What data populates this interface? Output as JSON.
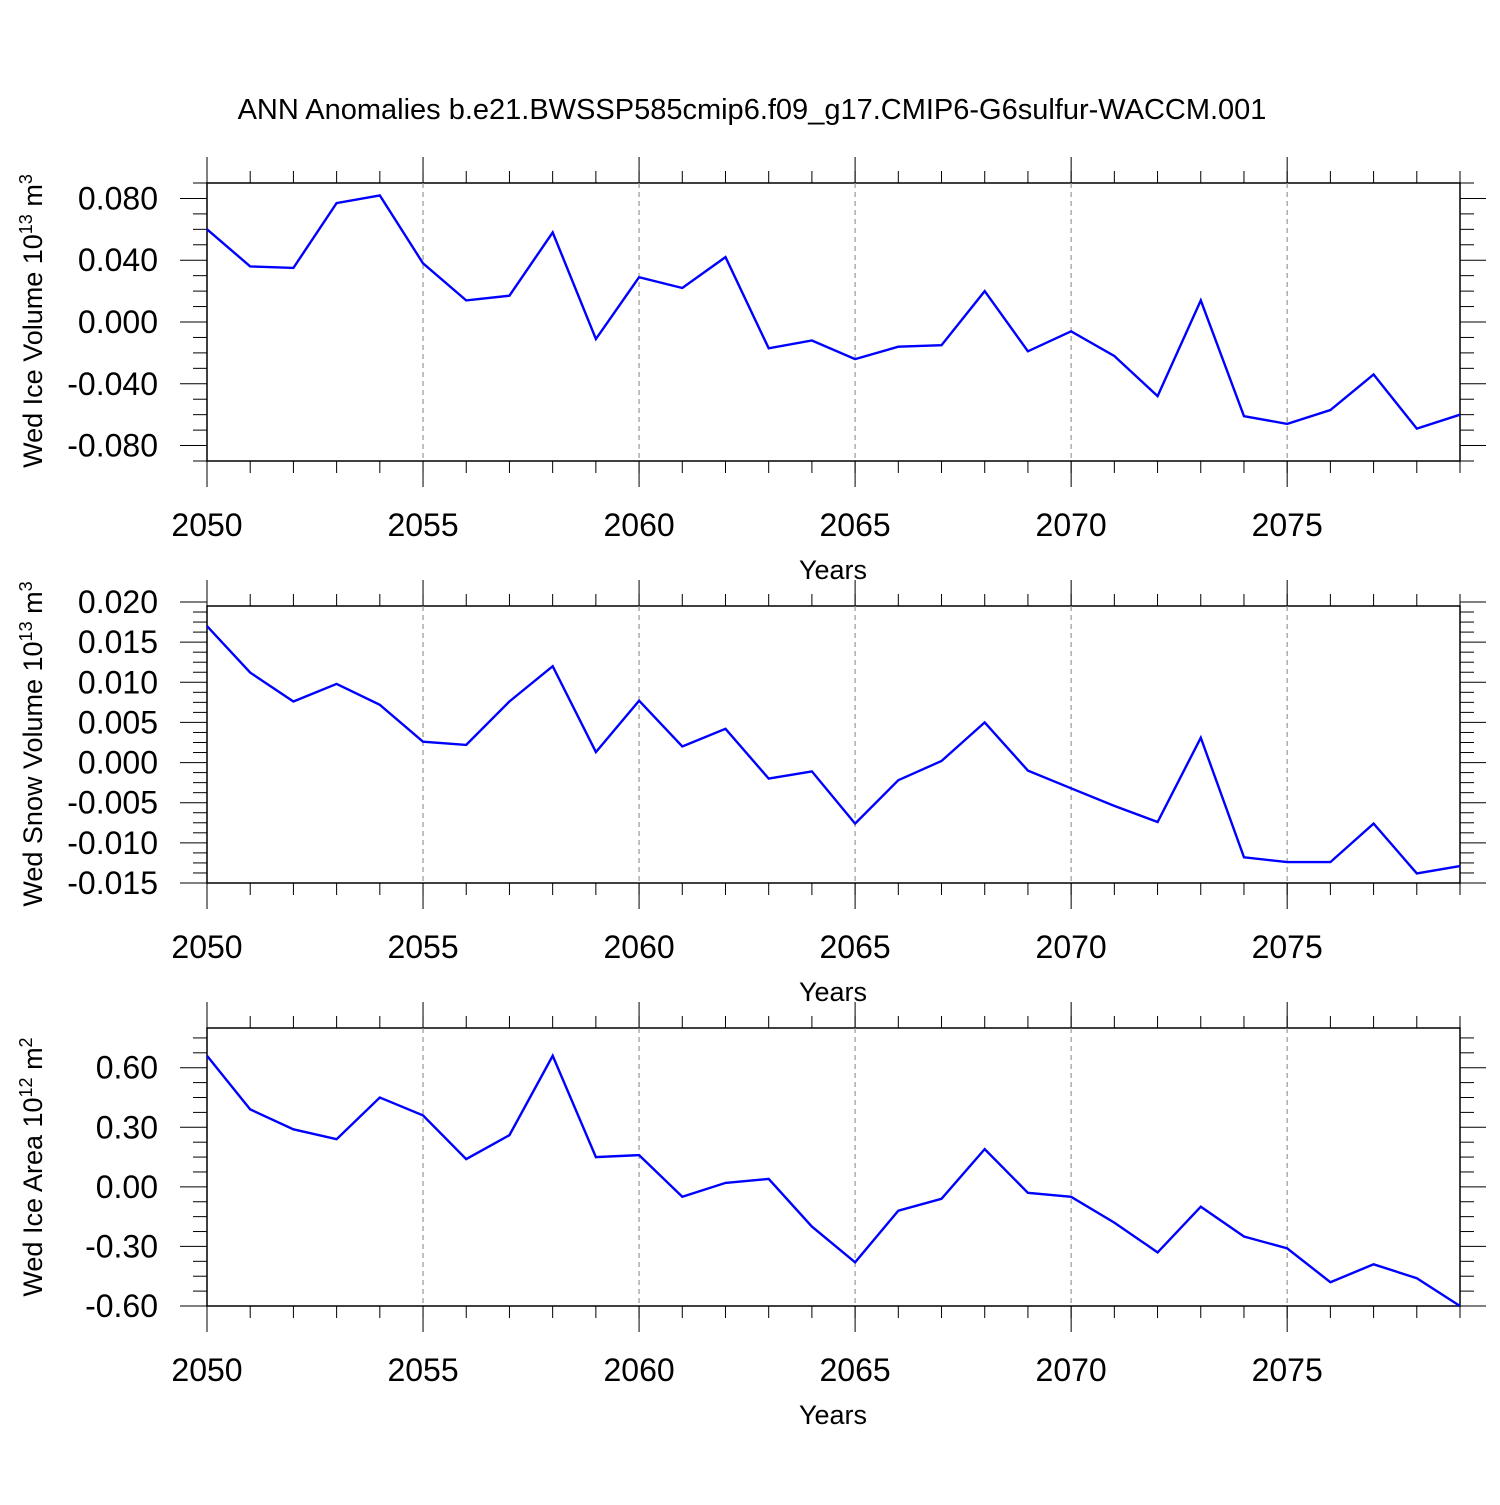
{
  "title": "ANN Anomalies b.e21.BWSSP585cmip6.f09_g17.CMIP6-G6sulfur-WACCM.001",
  "line_color": "#0000ff",
  "chart_data": [
    {
      "type": "line",
      "xlabel": "Years",
      "ylabel": {
        "main": "Wed Ice Volume 10",
        "exp": "13",
        "unit": " m",
        "unit_exp": "3"
      },
      "xlim": [
        2050,
        2079
      ],
      "ylim": [
        -0.09,
        0.09
      ],
      "xticks": [
        "2050",
        "2055",
        "2060",
        "2065",
        "2070",
        "2075"
      ],
      "yticks": [
        "0.080",
        "0.040",
        "0.000",
        "-0.040",
        "-0.080"
      ],
      "grid": "dashed vertical at major x ticks",
      "x": [
        2050,
        2051,
        2052,
        2053,
        2054,
        2055,
        2056,
        2057,
        2058,
        2059,
        2060,
        2061,
        2062,
        2063,
        2064,
        2065,
        2066,
        2067,
        2068,
        2069,
        2070,
        2071,
        2072,
        2073,
        2074,
        2075,
        2076,
        2077,
        2078,
        2079
      ],
      "values": [
        0.06,
        0.036,
        0.035,
        0.077,
        0.082,
        0.038,
        0.014,
        0.017,
        0.058,
        -0.011,
        0.029,
        0.022,
        0.042,
        -0.017,
        -0.012,
        -0.024,
        -0.016,
        -0.015,
        0.02,
        -0.019,
        -0.006,
        -0.022,
        -0.048,
        0.014,
        -0.061,
        -0.066,
        -0.057,
        -0.034,
        -0.069,
        -0.06
      ]
    },
    {
      "type": "line",
      "xlabel": "Years",
      "ylabel": {
        "main": "Wed Snow Volume 10",
        "exp": "13",
        "unit": " m",
        "unit_exp": "3"
      },
      "xlim": [
        2050,
        2079
      ],
      "ylim": [
        -0.015,
        0.0195
      ],
      "xticks": [
        "2050",
        "2055",
        "2060",
        "2065",
        "2070",
        "2075"
      ],
      "yticks": [
        "0.020",
        "0.015",
        "0.010",
        "0.005",
        "0.000",
        "-0.005",
        "-0.010",
        "-0.015"
      ],
      "grid": "dashed vertical at major x ticks",
      "x": [
        2050,
        2051,
        2052,
        2053,
        2054,
        2055,
        2056,
        2057,
        2058,
        2059,
        2060,
        2061,
        2062,
        2063,
        2064,
        2065,
        2066,
        2067,
        2068,
        2069,
        2070,
        2071,
        2072,
        2073,
        2074,
        2075,
        2076,
        2077,
        2078,
        2079
      ],
      "values": [
        0.017,
        0.0112,
        0.0076,
        0.0098,
        0.0072,
        0.0026,
        0.0022,
        0.0076,
        0.012,
        0.0013,
        0.0077,
        0.002,
        0.0042,
        -0.002,
        -0.0011,
        -0.0076,
        -0.0022,
        0.0002,
        0.005,
        -0.001,
        -0.0032,
        -0.0054,
        -0.0074,
        0.0031,
        -0.0118,
        -0.0124,
        -0.0124,
        -0.0076,
        -0.0138,
        -0.0129
      ]
    },
    {
      "type": "line",
      "xlabel": "Years",
      "ylabel": {
        "main": "Wed Ice Area 10",
        "exp": "12",
        "unit": " m",
        "unit_exp": "2"
      },
      "xlim": [
        2050,
        2079
      ],
      "ylim": [
        -0.6,
        0.8
      ],
      "xticks": [
        "2050",
        "2055",
        "2060",
        "2065",
        "2070",
        "2075"
      ],
      "yticks": [
        "0.60",
        "0.30",
        "0.00",
        "-0.30",
        "-0.60"
      ],
      "grid": "dashed vertical at major x ticks",
      "x": [
        2050,
        2051,
        2052,
        2053,
        2054,
        2055,
        2056,
        2057,
        2058,
        2059,
        2060,
        2061,
        2062,
        2063,
        2064,
        2065,
        2066,
        2067,
        2068,
        2069,
        2070,
        2071,
        2072,
        2073,
        2074,
        2075,
        2076,
        2077,
        2078,
        2079
      ],
      "values": [
        0.66,
        0.39,
        0.29,
        0.24,
        0.45,
        0.36,
        0.14,
        0.26,
        0.66,
        0.15,
        0.16,
        -0.05,
        0.02,
        0.04,
        -0.2,
        -0.38,
        -0.12,
        -0.06,
        0.19,
        -0.03,
        -0.05,
        -0.18,
        -0.33,
        -0.1,
        -0.25,
        -0.31,
        -0.48,
        -0.39,
        -0.46,
        -0.6
      ]
    }
  ]
}
